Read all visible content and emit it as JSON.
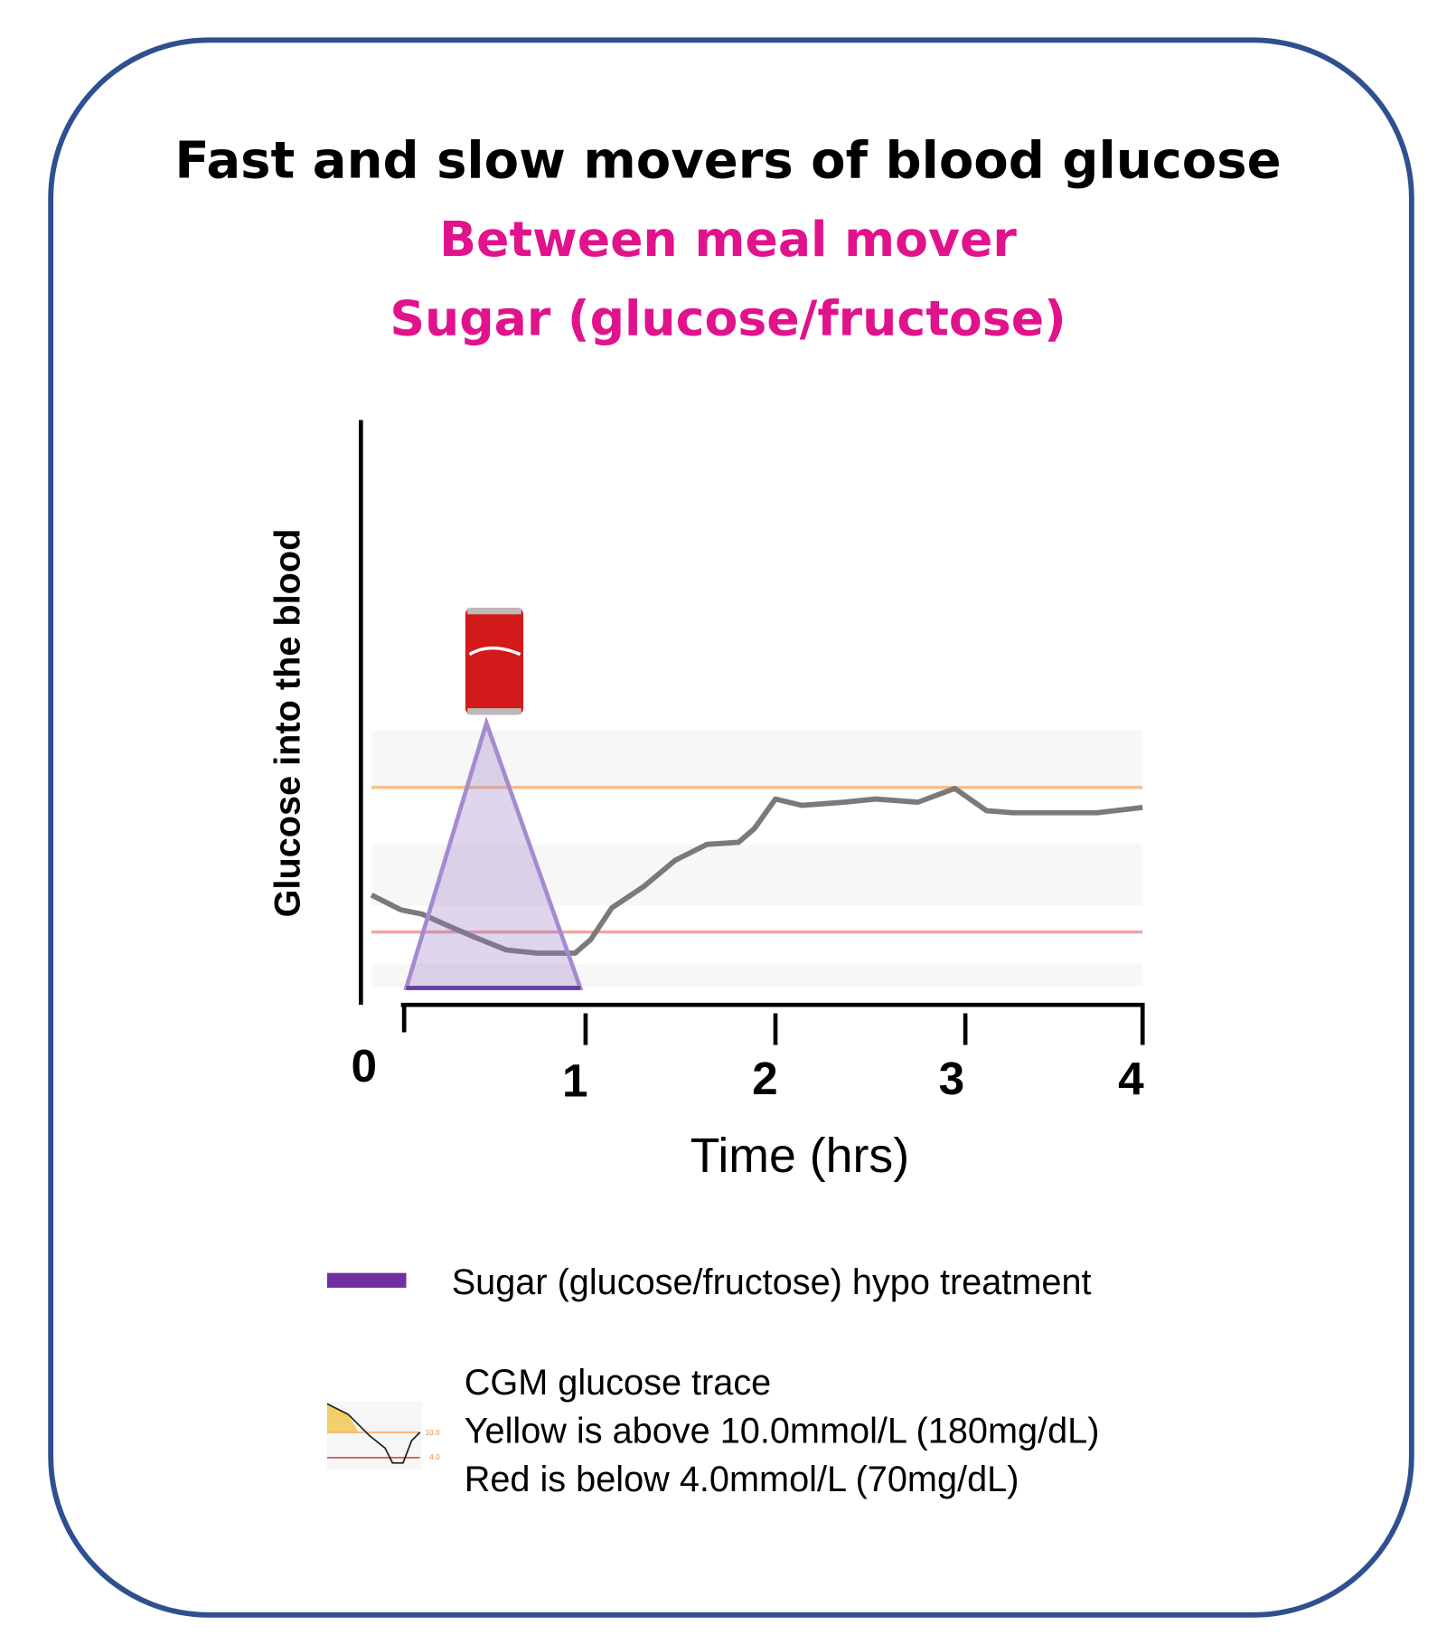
{
  "header": {
    "title": "Fast and slow movers of blood  glucose",
    "subtitle": "Between meal mover",
    "subtitle2": "Sugar (glucose/fructose)"
  },
  "axes": {
    "y_label": "Glucose into the blood",
    "x_label": "Time (hrs)",
    "x_ticks": [
      0,
      1,
      2,
      3,
      4
    ]
  },
  "legend": {
    "sugar": "Sugar (glucose/fructose) hypo treatment",
    "cgm_lines": [
      "CGM glucose trace",
      "Yellow is above 10.0mmol/L (180mg/dL)",
      "Red is below 4.0mmol/L (70mg/dL)"
    ],
    "icon_labels": [
      "10.0",
      "4.0"
    ]
  }
}
